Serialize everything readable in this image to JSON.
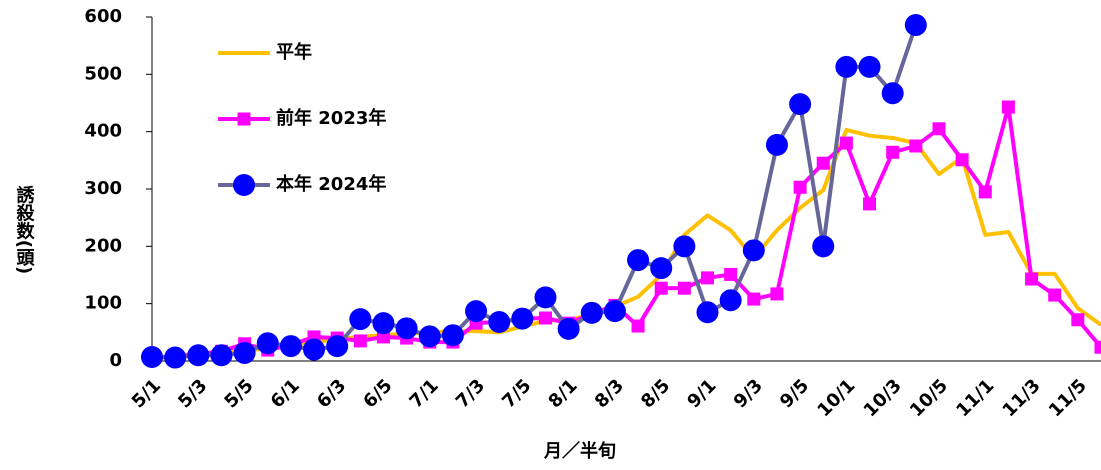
{
  "chart_data": {
    "type": "line",
    "x_label": "月／半旬",
    "y_label": "誘殺数(頭)",
    "categories": [
      "5/1",
      null,
      "5/3",
      null,
      "5/5",
      null,
      "6/1",
      null,
      "6/3",
      null,
      "6/5",
      null,
      "7/1",
      null,
      "7/3",
      null,
      "7/5",
      null,
      "8/1",
      null,
      "8/3",
      null,
      "8/5",
      null,
      "9/1",
      null,
      "9/3",
      null,
      "9/5",
      null,
      "10/1",
      null,
      "10/3",
      null,
      "10/5",
      null,
      "11/1",
      null,
      "11/3",
      null,
      "11/5",
      null
    ],
    "ylim": [
      0,
      600
    ],
    "yticks": [
      0,
      100,
      200,
      300,
      400,
      500,
      600
    ],
    "series": [
      {
        "name": "平年",
        "color": "#FFC000",
        "marker": "none",
        "values": [
          5,
          7,
          10,
          14,
          18,
          22,
          28,
          33,
          38,
          42,
          45,
          48,
          50,
          52,
          52,
          50,
          60,
          70,
          72,
          80,
          95,
          112,
          150,
          220,
          254,
          228,
          180,
          228,
          267,
          298,
          403,
          393,
          389,
          380,
          326,
          355,
          220,
          225,
          152,
          152,
          92,
          63
        ]
      },
      {
        "name": "前年 2023年",
        "color": "#FF00FF",
        "marker": "square",
        "marker_color": "#FF00FF",
        "values": [
          5,
          8,
          12,
          17,
          30,
          19,
          28,
          42,
          40,
          35,
          42,
          40,
          33,
          33,
          66,
          68,
          74,
          75,
          66,
          82,
          97,
          61,
          127,
          127,
          145,
          151,
          108,
          117,
          303,
          345,
          380,
          274,
          364,
          375,
          405,
          351,
          295,
          443,
          143,
          115,
          72,
          24
        ]
      },
      {
        "name": "本年 2024年",
        "color": "#66669A",
        "marker": "circle",
        "marker_color": "#0000FF",
        "values": [
          7,
          6,
          10,
          10,
          14,
          31,
          26,
          20,
          26,
          73,
          66,
          57,
          43,
          45,
          87,
          68,
          74,
          111,
          56,
          84,
          87,
          176,
          162,
          200,
          85,
          106,
          193,
          377,
          448,
          200,
          513,
          513,
          467,
          586,
          null,
          null,
          null,
          null,
          null,
          null,
          null,
          null
        ]
      }
    ]
  }
}
